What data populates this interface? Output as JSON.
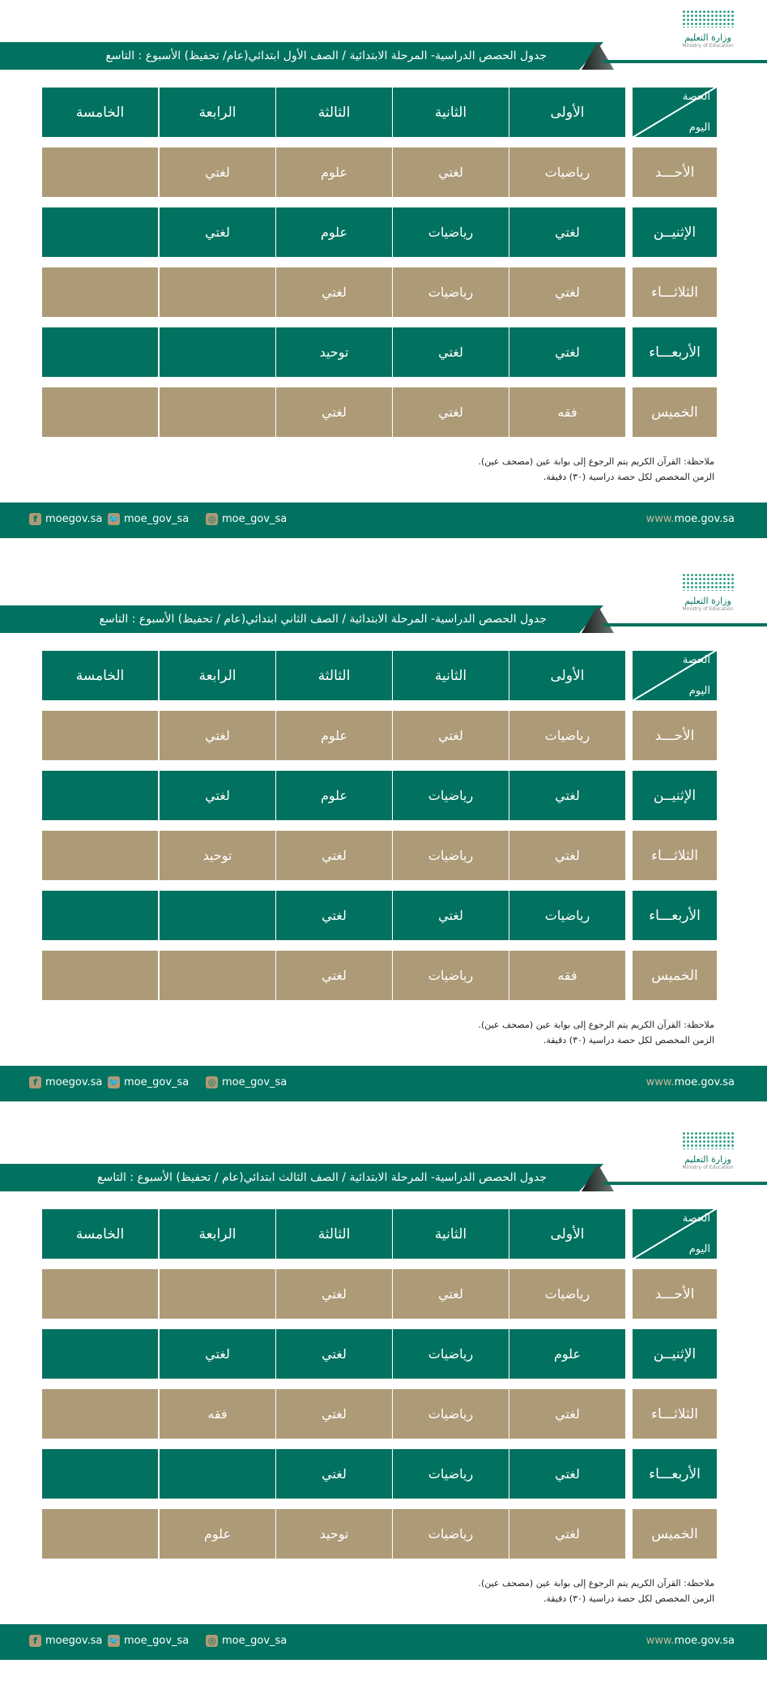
{
  "logo": {
    "ar": "وزارة التعليم",
    "en": "Ministry of Education"
  },
  "header_corner": {
    "period": "الحصة",
    "day": "اليوم"
  },
  "periods": [
    "الأولى",
    "الثانية",
    "الثالثة",
    "الرابعة",
    "الخامسة"
  ],
  "days": [
    "الأحـــد",
    "الإثنيــن",
    "الثلاثـــاء",
    "الأربعـــاء",
    "الخميس"
  ],
  "notes": [
    "ملاحظة: القرآن الكريم يتم الرجوع إلى بوابة عين (مصحف عين).",
    "الزمن المخصص لكل حصة دراسية (٣٠) دقيقة."
  ],
  "footer": {
    "facebook": "moegov.sa",
    "twitter": "moe_gov_sa",
    "instagram": "moe_gov_sa",
    "www": "www.",
    "site": "moe.gov.sa"
  },
  "colors": {
    "green": "#00725f",
    "tan": "#ad9a76"
  },
  "schedules": [
    {
      "title": "جدول الحصص الدراسية- المرحلة الابتدائية / الصف الأول ابتدائي(عام/ تحفيظ)  الأسبوع : التاسع",
      "rows": [
        [
          "رياضيات",
          "لغتي",
          "علوم",
          "لغتي",
          ""
        ],
        [
          "لغتي",
          "رياضيات",
          "علوم",
          "لغتي",
          ""
        ],
        [
          "لغتي",
          "رياضيات",
          "لغتي",
          "",
          ""
        ],
        [
          "لغتي",
          "لغتي",
          "توحيد",
          "",
          ""
        ],
        [
          "فقه",
          "لغتي",
          "لغتي",
          "",
          ""
        ]
      ]
    },
    {
      "title": "جدول الحصص الدراسية- المرحلة الابتدائية / الصف الثاني ابتدائي(عام / تحفيظ)  الأسبوع : التاسع",
      "rows": [
        [
          "رياضيات",
          "لغتي",
          "علوم",
          "لغتي",
          ""
        ],
        [
          "لغتي",
          "رياضيات",
          "علوم",
          "لغتي",
          ""
        ],
        [
          "لغتي",
          "رياضيات",
          "لغتي",
          "توحيد",
          ""
        ],
        [
          "رياضيات",
          "لغتي",
          "لغتي",
          "",
          ""
        ],
        [
          "فقه",
          "رياضيات",
          "لغتي",
          "",
          ""
        ]
      ]
    },
    {
      "title": "جدول الحصص الدراسية- المرحلة الابتدائية / الصف الثالث ابتدائي(عام / تحفيظ)  الأسبوع : التاسع",
      "rows": [
        [
          "رياضيات",
          "لغتي",
          "لغتي",
          "",
          ""
        ],
        [
          "علوم",
          "رياضيات",
          "لغتي",
          "لغتي",
          ""
        ],
        [
          "لغتي",
          "رياضيات",
          "لغتي",
          "فقه",
          ""
        ],
        [
          "لغتي",
          "رياضيات",
          "لغتي",
          "",
          ""
        ],
        [
          "لغتي",
          "رياضيات",
          "توحيد",
          "علوم",
          ""
        ]
      ]
    }
  ]
}
